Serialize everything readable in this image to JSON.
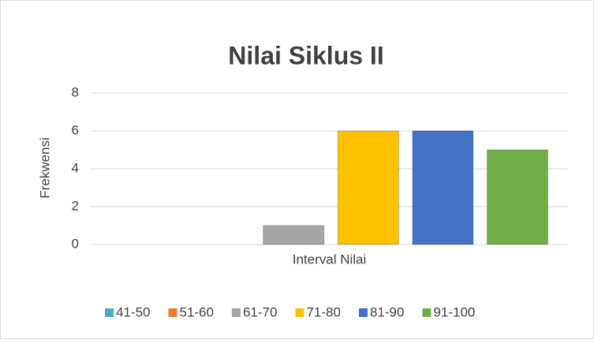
{
  "chart_data": {
    "type": "bar",
    "title": "Nilai Siklus II",
    "y_label": "Frekwensi",
    "categories": [
      "Interval Nilai"
    ],
    "series": [
      {
        "name": "41-50",
        "color": "#4bacc6",
        "values": [
          0
        ]
      },
      {
        "name": "51-60",
        "color": "#ed7d31",
        "values": [
          0
        ]
      },
      {
        "name": "61-70",
        "color": "#a5a5a5",
        "values": [
          1
        ]
      },
      {
        "name": "71-80",
        "color": "#ffc000",
        "values": [
          6
        ]
      },
      {
        "name": "81-90",
        "color": "#4472c4",
        "values": [
          6
        ]
      },
      {
        "name": "91-100",
        "color": "#70ad47",
        "values": [
          5
        ]
      }
    ],
    "ylim": [
      0,
      8
    ],
    "yticks": [
      0,
      2,
      4,
      6,
      8
    ],
    "grid": true,
    "legend": "bottom"
  }
}
